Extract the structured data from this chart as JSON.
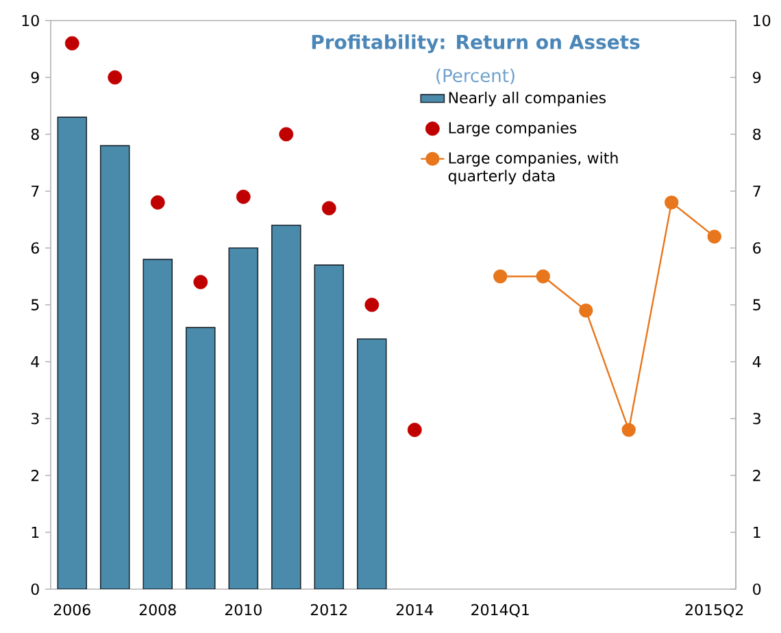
{
  "chart_data": {
    "type": "bar",
    "title": "Profitability: Return on Assets",
    "subtitle": "(Percent)",
    "categories": [
      "2006",
      null,
      "2008",
      null,
      "2010",
      null,
      "2012",
      null,
      "2014",
      null,
      "2014Q1",
      null,
      null,
      null,
      null,
      "2015Q2"
    ],
    "series": [
      {
        "name": "Nearly all companies",
        "color": "#4a8aab",
        "values": [
          8.3,
          7.8,
          5.8,
          4.6,
          6.0,
          6.4,
          5.7,
          4.4,
          null,
          null,
          null,
          null,
          null,
          null,
          null,
          null
        ]
      },
      {
        "name": "Large companies",
        "type": "scatter",
        "marker": "circle",
        "color": "#c00000",
        "values": [
          9.6,
          9.0,
          6.8,
          5.4,
          6.9,
          8.0,
          6.7,
          5.0,
          2.8,
          null,
          null,
          null,
          null,
          null,
          null,
          null
        ]
      },
      {
        "name": "Large companies, with quarterly data",
        "type": "line",
        "marker": "circle",
        "color": "#e8761c",
        "values": [
          null,
          null,
          null,
          null,
          null,
          null,
          null,
          null,
          null,
          null,
          5.5,
          5.5,
          4.9,
          2.8,
          6.8,
          6.2
        ]
      }
    ],
    "ylim": [
      0,
      10
    ],
    "yticks": [
      0,
      1,
      2,
      3,
      4,
      5,
      6,
      7,
      8,
      9,
      10
    ],
    "y2lim": [
      0,
      10
    ],
    "y2ticks": [
      0,
      1,
      2,
      3,
      4,
      5,
      6,
      7,
      8,
      9,
      10
    ],
    "grid": false,
    "legend": "top right"
  }
}
